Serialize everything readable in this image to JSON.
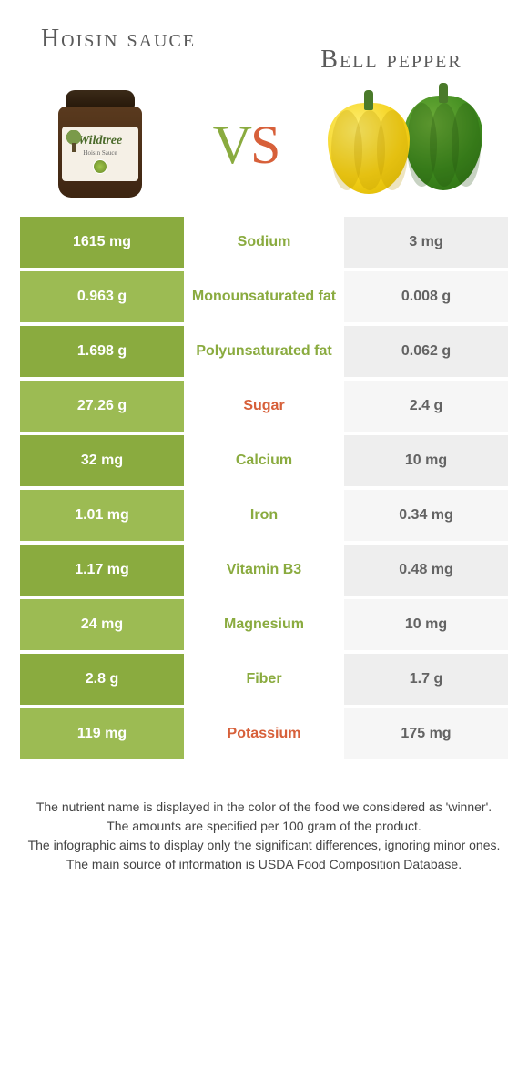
{
  "titles": {
    "left": "Hoisin sauce",
    "right": "Bell pepper"
  },
  "vs": {
    "v": "V",
    "s": "S"
  },
  "jar": {
    "brand": "Wildtree",
    "sub": "Hoisin Sauce"
  },
  "colors": {
    "left_food": "#8aab3f",
    "right_food": "#d7603a",
    "left_bg_dark": "#8aab3f",
    "left_bg_light": "#9cbb53",
    "right_bg_dark": "#eeeeee",
    "right_bg_light": "#f6f6f6"
  },
  "rows": [
    {
      "nutrient": "Sodium",
      "left": "1615 mg",
      "right": "3 mg",
      "winner": "left"
    },
    {
      "nutrient": "Monounsaturated fat",
      "left": "0.963 g",
      "right": "0.008 g",
      "winner": "left"
    },
    {
      "nutrient": "Polyunsaturated fat",
      "left": "1.698 g",
      "right": "0.062 g",
      "winner": "left"
    },
    {
      "nutrient": "Sugar",
      "left": "27.26 g",
      "right": "2.4 g",
      "winner": "right"
    },
    {
      "nutrient": "Calcium",
      "left": "32 mg",
      "right": "10 mg",
      "winner": "left"
    },
    {
      "nutrient": "Iron",
      "left": "1.01 mg",
      "right": "0.34 mg",
      "winner": "left"
    },
    {
      "nutrient": "Vitamin B3",
      "left": "1.17 mg",
      "right": "0.48 mg",
      "winner": "left"
    },
    {
      "nutrient": "Magnesium",
      "left": "24 mg",
      "right": "10 mg",
      "winner": "left"
    },
    {
      "nutrient": "Fiber",
      "left": "2.8 g",
      "right": "1.7 g",
      "winner": "left"
    },
    {
      "nutrient": "Potassium",
      "left": "119 mg",
      "right": "175 mg",
      "winner": "right"
    }
  ],
  "footer": {
    "l1": "The nutrient name is displayed in the color of the food we considered as 'winner'.",
    "l2": "The amounts are specified per 100 gram of the product.",
    "l3": "The infographic aims to display only the significant differences, ignoring minor ones.",
    "l4": "The main source of information is USDA Food Composition Database."
  }
}
